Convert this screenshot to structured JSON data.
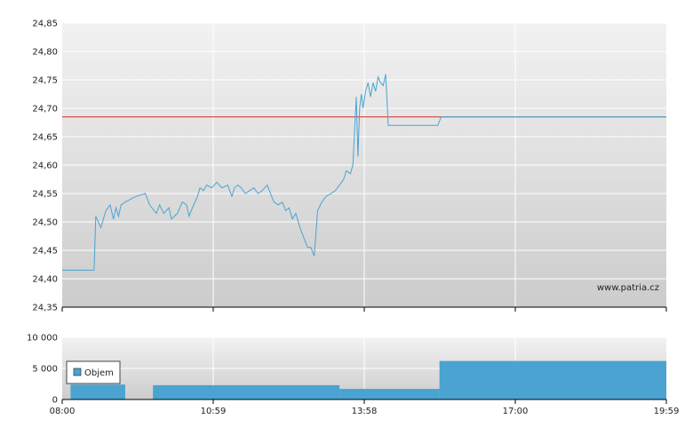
{
  "watermark": "www.patria.cz",
  "legend": {
    "label": "Objem"
  },
  "colors": {
    "price_line": "#4aa3d0",
    "reference_line": "#d9534f",
    "volume": "#4aa3d0",
    "plot_top": "#f2f2f2",
    "plot_bottom": "#cccccc"
  },
  "chart_data": [
    {
      "type": "line",
      "x_ticks": [
        "08:00",
        "10:59",
        "13:58",
        "17:00",
        "19:59"
      ],
      "y_ticks": [
        "24,35",
        "24,40",
        "24,45",
        "24,50",
        "24,55",
        "24,60",
        "24,65",
        "24,70",
        "24,75",
        "24,80",
        "24,85"
      ],
      "ylim": [
        24.35,
        24.85
      ],
      "xlim_minutes": [
        0,
        719
      ],
      "reference_value": 24.685,
      "series": [
        {
          "points": [
            [
              0,
              24.415
            ],
            [
              38,
              24.415
            ],
            [
              40,
              24.51
            ],
            [
              46,
              24.49
            ],
            [
              52,
              24.52
            ],
            [
              57,
              24.53
            ],
            [
              61,
              24.505
            ],
            [
              64,
              24.525
            ],
            [
              67,
              24.51
            ],
            [
              70,
              24.53
            ],
            [
              75,
              24.535
            ],
            [
              88,
              24.545
            ],
            [
              99,
              24.55
            ],
            [
              104,
              24.53
            ],
            [
              112,
              24.515
            ],
            [
              116,
              24.53
            ],
            [
              121,
              24.515
            ],
            [
              127,
              24.525
            ],
            [
              130,
              24.505
            ],
            [
              137,
              24.515
            ],
            [
              143,
              24.535
            ],
            [
              148,
              24.53
            ],
            [
              151,
              24.51
            ],
            [
              155,
              24.525
            ],
            [
              161,
              24.545
            ],
            [
              164,
              24.56
            ],
            [
              168,
              24.555
            ],
            [
              172,
              24.565
            ],
            [
              178,
              24.56
            ],
            [
              184,
              24.57
            ],
            [
              190,
              24.56
            ],
            [
              197,
              24.565
            ],
            [
              202,
              24.545
            ],
            [
              205,
              24.56
            ],
            [
              209,
              24.565
            ],
            [
              213,
              24.56
            ],
            [
              218,
              24.55
            ],
            [
              223,
              24.555
            ],
            [
              228,
              24.56
            ],
            [
              233,
              24.55
            ],
            [
              238,
              24.555
            ],
            [
              244,
              24.565
            ],
            [
              248,
              24.55
            ],
            [
              252,
              24.535
            ],
            [
              257,
              24.53
            ],
            [
              262,
              24.535
            ],
            [
              266,
              24.52
            ],
            [
              270,
              24.525
            ],
            [
              274,
              24.505
            ],
            [
              278,
              24.515
            ],
            [
              283,
              24.49
            ],
            [
              288,
              24.47
            ],
            [
              292,
              24.455
            ],
            [
              296,
              24.455
            ],
            [
              300,
              24.44
            ],
            [
              304,
              24.52
            ],
            [
              309,
              24.535
            ],
            [
              314,
              24.545
            ],
            [
              320,
              24.55
            ],
            [
              325,
              24.555
            ],
            [
              330,
              24.565
            ],
            [
              335,
              24.575
            ],
            [
              338,
              24.59
            ],
            [
              343,
              24.585
            ],
            [
              346,
              24.6
            ],
            [
              350,
              24.72
            ],
            [
              352,
              24.615
            ],
            [
              354,
              24.7
            ],
            [
              356,
              24.725
            ],
            [
              358,
              24.7
            ],
            [
              361,
              24.73
            ],
            [
              364,
              24.745
            ],
            [
              367,
              24.72
            ],
            [
              370,
              24.745
            ],
            [
              373,
              24.73
            ],
            [
              376,
              24.755
            ],
            [
              379,
              24.745
            ],
            [
              382,
              24.74
            ],
            [
              385,
              24.76
            ],
            [
              388,
              24.67
            ],
            [
              447,
              24.67
            ],
            [
              451,
              24.685
            ],
            [
              719,
              24.685
            ]
          ]
        }
      ]
    },
    {
      "type": "bar",
      "x_ticks": [
        "08:00",
        "10:59",
        "13:58",
        "17:00",
        "19:59"
      ],
      "y_ticks": [
        "0",
        "5 000",
        "10 000"
      ],
      "ylim": [
        0,
        10000
      ],
      "xlim_minutes": [
        0,
        719
      ],
      "series": [
        {
          "name": "Objem",
          "segments": [
            [
              10,
              75,
              2400
            ],
            [
              108,
              330,
              2300
            ],
            [
              330,
              449,
              1700
            ],
            [
              449,
              719,
              6200
            ]
          ]
        }
      ]
    }
  ]
}
